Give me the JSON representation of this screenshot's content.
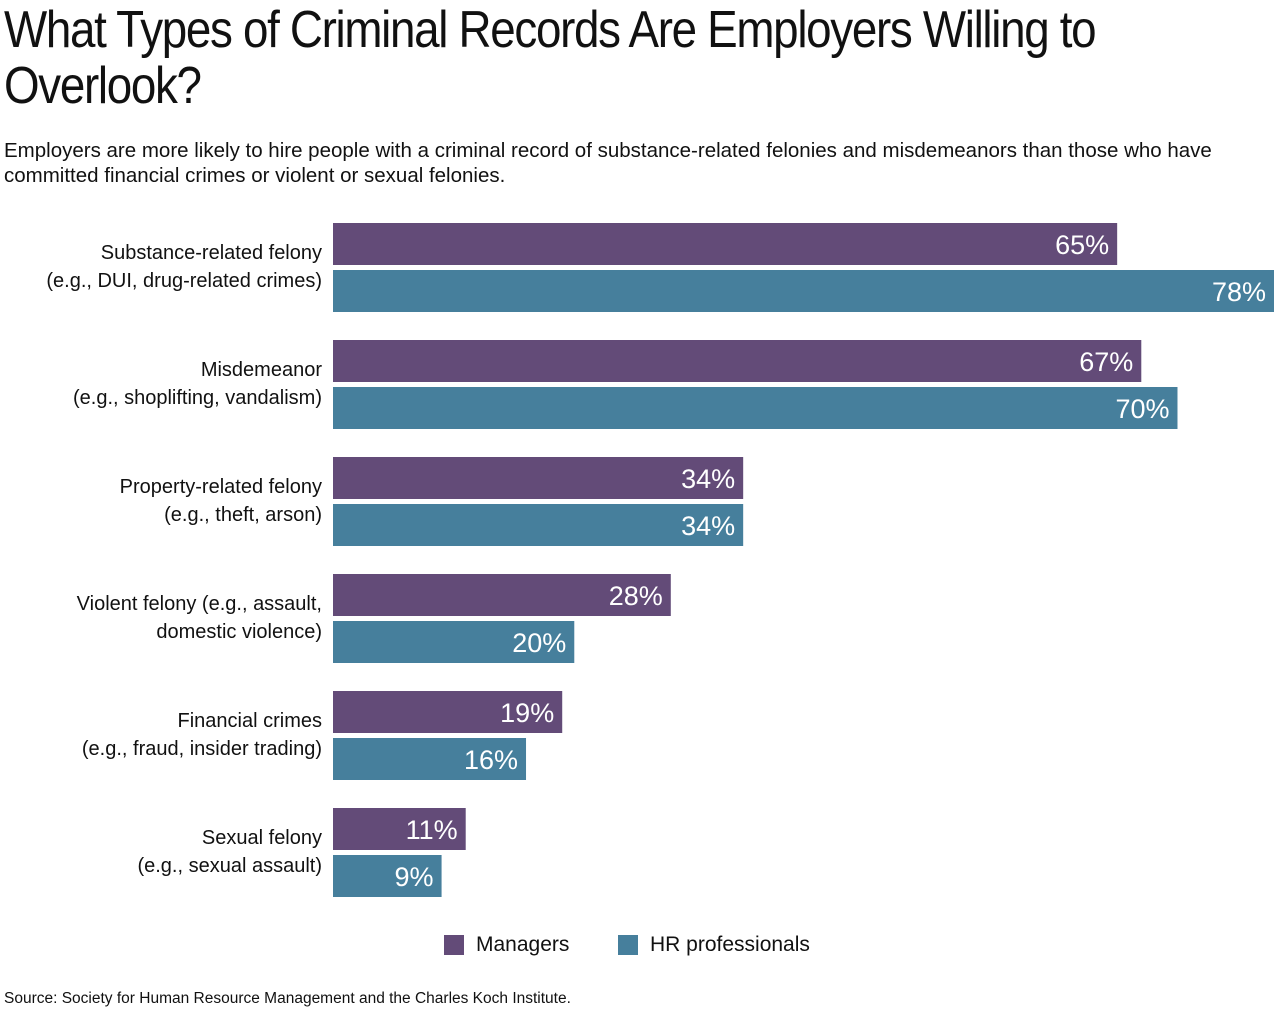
{
  "title": "What Types of Criminal Records Are Employers Willing to Overlook?",
  "subtitle": "Employers are more likely to hire people with a criminal record of substance-related felonies and misdemeanors than those who have committed financial crimes or violent or sexual felonies.",
  "source": "Source: Society for Human Resource Management and the Charles Koch Institute.",
  "colors": {
    "managers": "#634b78",
    "hr": "#467f9c"
  },
  "chart_data": {
    "type": "bar",
    "orientation": "horizontal",
    "categories": [
      [
        "Substance-related felony",
        "(e.g., DUI, drug-related crimes)"
      ],
      [
        "Misdemeanor",
        "(e.g., shoplifting, vandalism)"
      ],
      [
        "Property-related felony",
        "(e.g., theft, arson)"
      ],
      [
        "Violent felony (e.g., assault,",
        "domestic violence)"
      ],
      [
        "Financial crimes",
        "(e.g., fraud, insider trading)"
      ],
      [
        "Sexual felony",
        "(e.g., sexual assault)"
      ]
    ],
    "series": [
      {
        "name": "Managers",
        "values": [
          65,
          67,
          34,
          28,
          19,
          11
        ],
        "labels": [
          "65%",
          "67%",
          "34%",
          "28%",
          "19%",
          "11%"
        ]
      },
      {
        "name": "HR professionals",
        "values": [
          78,
          70,
          34,
          20,
          16,
          9
        ],
        "labels": [
          "78%",
          "70%",
          "34%",
          "20%",
          "16%",
          "9%"
        ]
      }
    ],
    "unit": "%",
    "xlim": [
      0,
      78
    ],
    "grid": false,
    "legend_position": "bottom"
  }
}
